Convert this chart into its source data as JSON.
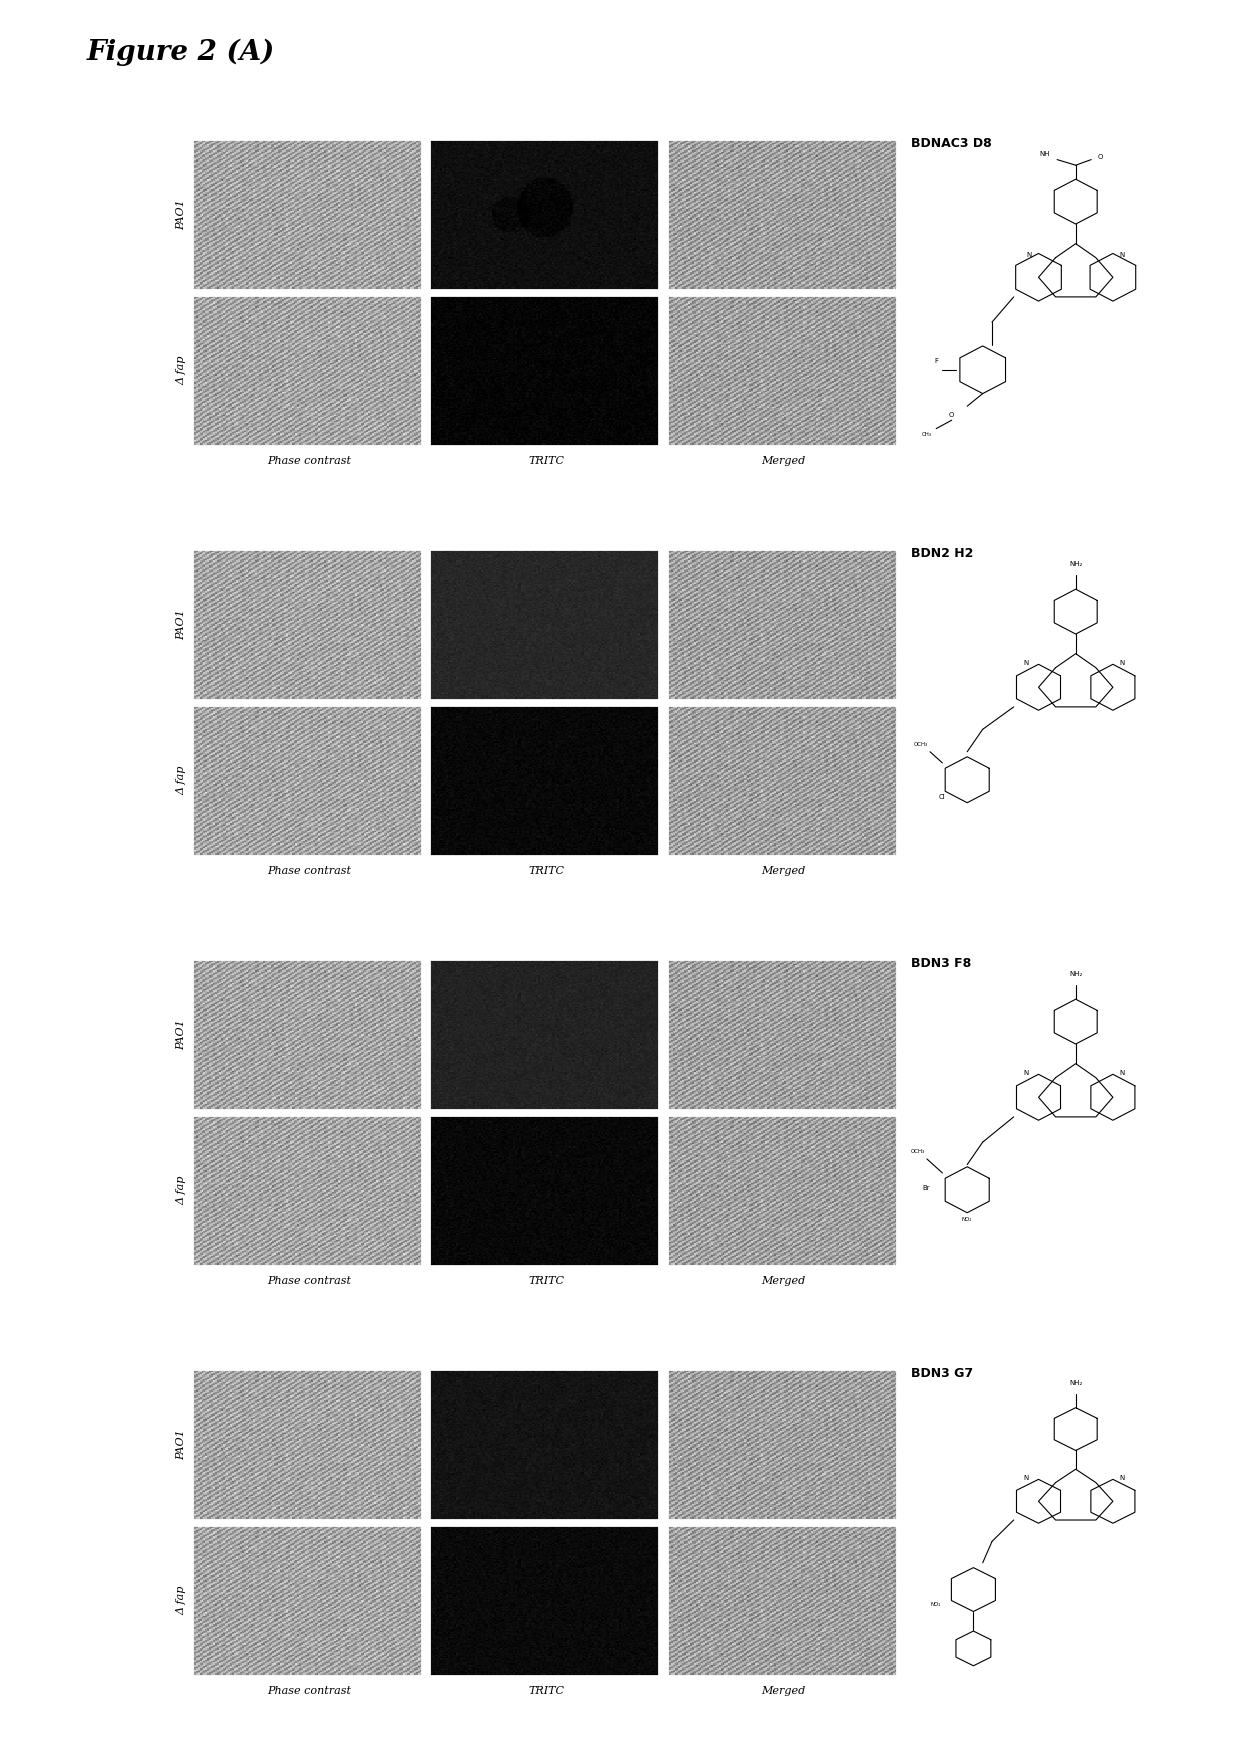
{
  "title": "Figure 2 (A)",
  "panels": [
    {
      "compound": "BDNAC3 D8",
      "row_labels": [
        "PAO1",
        "Δ fap"
      ],
      "col_labels": [
        "Phase contrast",
        "TRITC",
        "Merged"
      ],
      "pao1_phase_val": 160,
      "pao1_tritc_val": 15,
      "pao1_merged_val": 155,
      "dfap_phase_val": 160,
      "dfap_tritc_val": 5,
      "dfap_merged_val": 155,
      "pao1_tritc_has_shape": true
    },
    {
      "compound": "BDN2 H2",
      "row_labels": [
        "PAO1",
        "Δ fap"
      ],
      "col_labels": [
        "Phase contrast",
        "TRITC",
        "Merged"
      ],
      "pao1_phase_val": 160,
      "pao1_tritc_val": 40,
      "pao1_merged_val": 155,
      "dfap_phase_val": 160,
      "dfap_tritc_val": 8,
      "dfap_merged_val": 155,
      "pao1_tritc_has_shape": false
    },
    {
      "compound": "BDN3 F8",
      "row_labels": [
        "PAO1",
        "Δ fap"
      ],
      "col_labels": [
        "Phase contrast",
        "TRITC",
        "Merged"
      ],
      "pao1_phase_val": 160,
      "pao1_tritc_val": 35,
      "pao1_merged_val": 155,
      "dfap_phase_val": 160,
      "dfap_tritc_val": 8,
      "dfap_merged_val": 155,
      "pao1_tritc_has_shape": false
    },
    {
      "compound": "BDN3 G7",
      "row_labels": [
        "PAO1",
        "Δ fap"
      ],
      "col_labels": [
        "Phase contrast",
        "TRITC",
        "Merged"
      ],
      "pao1_phase_val": 160,
      "pao1_tritc_val": 20,
      "pao1_merged_val": 155,
      "dfap_phase_val": 160,
      "dfap_tritc_val": 10,
      "dfap_merged_val": 155,
      "pao1_tritc_has_shape": false
    }
  ],
  "bg_color": "#ffffff",
  "title_fontsize": 20,
  "label_fontsize": 8,
  "row_label_fontsize": 7,
  "compound_fontsize": 8
}
